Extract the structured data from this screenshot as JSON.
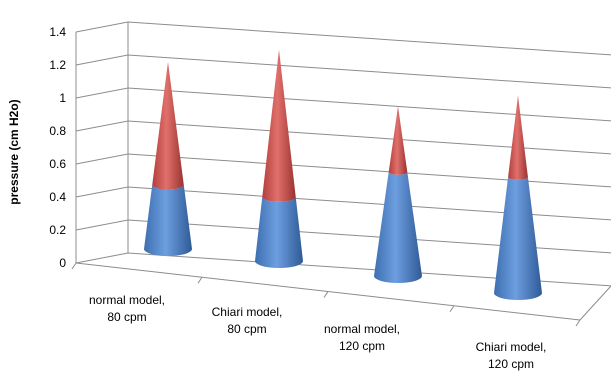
{
  "chart_data": {
    "type": "bar",
    "style": "3d-cone-stacked",
    "title": "",
    "xlabel": "",
    "ylabel": "pressure (cm H2o)",
    "ylim": [
      0,
      1.4
    ],
    "yticks": [
      "0",
      "0.2",
      "0.4",
      "0.6",
      "0.8",
      "1",
      "1.2",
      "1.4"
    ],
    "grid": true,
    "legend": "none",
    "categories": [
      [
        "normal model,",
        "80 cpm"
      ],
      [
        "Chiari model,",
        "80 cpm"
      ],
      [
        "normal model,",
        "120 cpm"
      ],
      [
        "Chiari model,",
        "120 cpm"
      ]
    ],
    "series": [
      {
        "color": "#4f81bd",
        "values": [
          0.37,
          0.37,
          0.6,
          0.67
        ]
      },
      {
        "color": "#c0504d",
        "values": [
          0.71,
          0.85,
          0.38,
          0.47
        ]
      }
    ],
    "totals": [
      1.08,
      1.22,
      0.98,
      1.14
    ]
  }
}
